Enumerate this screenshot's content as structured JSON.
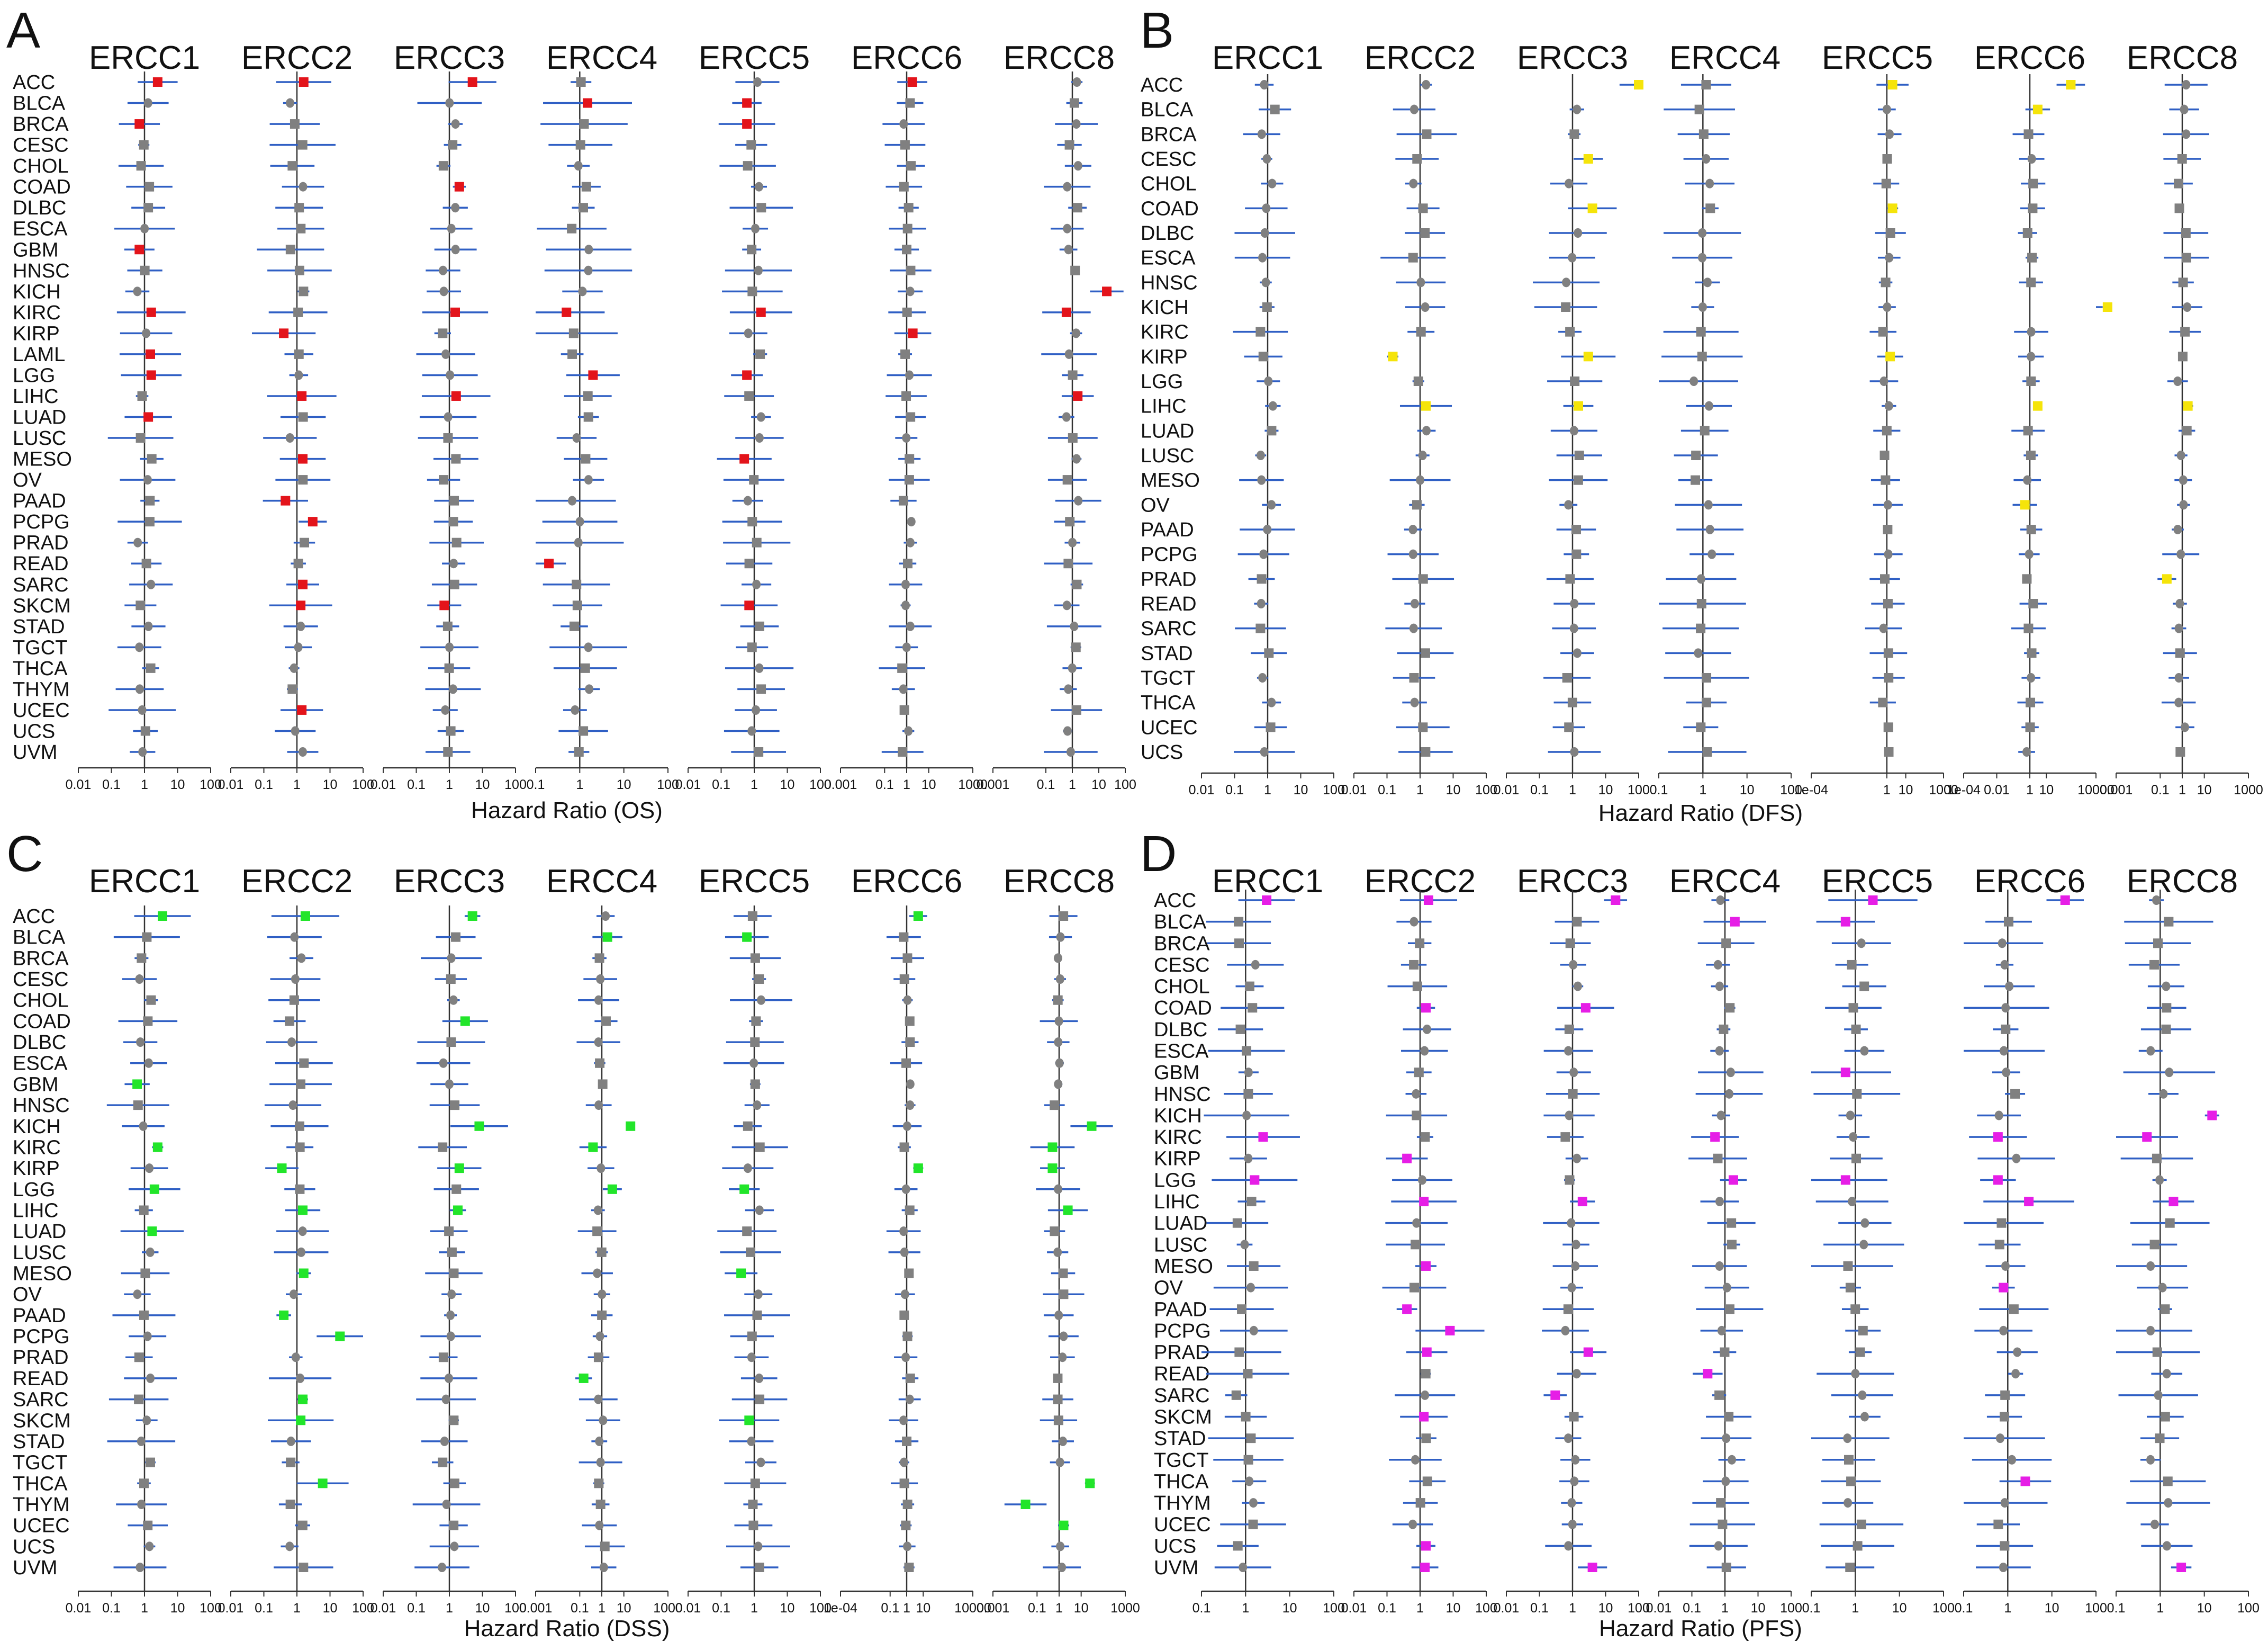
{
  "figure": {
    "genes": [
      "ERCC1",
      "ERCC2",
      "ERCC3",
      "ERCC4",
      "ERCC5",
      "ERCC6",
      "ERCC8"
    ],
    "colors": {
      "non_significant": "#808080",
      "ci_line": "#2f5fc4",
      "reference_line": "#333333",
      "sig_os": "#e3141b",
      "sig_dfs": "#f5e40a",
      "sig_dss": "#22e52a",
      "sig_pfs": "#e61ee6"
    },
    "marker_icons": [
      "square-marker-icon",
      "circle-marker-icon"
    ]
  },
  "chart_data": [
    {
      "type": "forest",
      "panel": "A",
      "xlabel": "Hazard Ratio (OS)",
      "highlight_color": "#e3141b",
      "cancers": [
        "ACC",
        "BLCA",
        "BRCA",
        "CESC",
        "CHOL",
        "COAD",
        "DLBC",
        "ESCA",
        "GBM",
        "HNSC",
        "KICH",
        "KIRC",
        "KIRP",
        "LAML",
        "LGG",
        "LIHC",
        "LUAD",
        "LUSC",
        "MESO",
        "OV",
        "PAAD",
        "PCPG",
        "PRAD",
        "READ",
        "SARC",
        "SKCM",
        "STAD",
        "TGCT",
        "THCA",
        "THYM",
        "UCEC",
        "UCS",
        "UVM"
      ],
      "columns": [
        {
          "gene": "ERCC1",
          "ticks": [
            "0.01",
            "0.1",
            "1",
            "10",
            "100"
          ],
          "tick_values": [
            0.01,
            0.1,
            1,
            10,
            100
          ],
          "significant": {
            "ACC": 2.5,
            "BRCA": 0.7,
            "GBM": 0.7,
            "KIRC": 1.6,
            "LAML": 1.5,
            "LGG": 1.6,
            "LUAD": 1.3
          }
        },
        {
          "gene": "ERCC2",
          "ticks": [
            "0.01",
            "0.1",
            "1",
            "10",
            "100"
          ],
          "tick_values": [
            0.01,
            0.1,
            1,
            10,
            100
          ],
          "significant": {
            "ACC": 1.6,
            "KIRP": 0.4,
            "LIHC": 1.4,
            "MESO": 1.5,
            "PAAD": 0.45,
            "PCPG": 3.0,
            "SARC": 1.5,
            "SKCM": 1.3,
            "UCEC": 1.4
          }
        },
        {
          "gene": "ERCC3",
          "ticks": [
            "0.01",
            "0.1",
            "1",
            "10",
            "100"
          ],
          "tick_values": [
            0.01,
            0.1,
            1,
            10,
            100
          ],
          "significant": {
            "ACC": 5.0,
            "COAD": 2.0,
            "KIRC": 1.5,
            "LIHC": 1.6,
            "SKCM": 0.7
          }
        },
        {
          "gene": "ERCC4",
          "ticks": [
            "0.1",
            "1",
            "10",
            "100"
          ],
          "tick_values": [
            0.1,
            1,
            10,
            100
          ],
          "significant": {
            "BLCA": 1.5,
            "KIRC": 0.5,
            "LGG": 2.0,
            "READ": 0.2
          }
        },
        {
          "gene": "ERCC5",
          "ticks": [
            "0.01",
            "0.1",
            "1",
            "10",
            "100"
          ],
          "tick_values": [
            0.01,
            0.1,
            1,
            10,
            100
          ],
          "significant": {
            "BLCA": 0.6,
            "BRCA": 0.6,
            "KIRC": 1.6,
            "LGG": 0.6,
            "MESO": 0.5,
            "SKCM": 0.7
          }
        },
        {
          "gene": "ERCC6",
          "ticks": [
            "0.001",
            "0.1",
            "1",
            "10",
            "1000"
          ],
          "tick_values": [
            0.001,
            0.1,
            1,
            10,
            1000
          ],
          "significant": {
            "ACC": 1.8,
            "KIRP": 1.9
          }
        },
        {
          "gene": "ERCC8",
          "ticks": [
            "0.001",
            "0.1",
            "1",
            "10",
            "100"
          ],
          "tick_values": [
            0.001,
            0.1,
            1,
            10,
            100
          ],
          "significant": {
            "KICH": 20,
            "KIRC": 0.6,
            "LIHC": 1.6
          }
        }
      ]
    },
    {
      "type": "forest",
      "panel": "B",
      "xlabel": "Hazard Ratio (DFS)",
      "highlight_color": "#f5e40a",
      "cancers": [
        "ACC",
        "BLCA",
        "BRCA",
        "CESC",
        "CHOL",
        "COAD",
        "DLBC",
        "ESCA",
        "HNSC",
        "KICH",
        "KIRC",
        "KIRP",
        "LGG",
        "LIHC",
        "LUAD",
        "LUSC",
        "MESO",
        "OV",
        "PAAD",
        "PCPG",
        "PRAD",
        "READ",
        "SARC",
        "STAD",
        "TGCT",
        "THCA",
        "UCEC",
        "UCS"
      ],
      "columns": [
        {
          "gene": "ERCC1",
          "ticks": [
            "0.01",
            "0.1",
            "1",
            "10",
            "100"
          ],
          "tick_values": [
            0.01,
            0.1,
            1,
            10,
            100
          ],
          "significant": {}
        },
        {
          "gene": "ERCC2",
          "ticks": [
            "0.01",
            "0.1",
            "1",
            "10",
            "100"
          ],
          "tick_values": [
            0.01,
            0.1,
            1,
            10,
            100
          ],
          "significant": {
            "KIRP": 0.15,
            "LIHC": 1.5
          }
        },
        {
          "gene": "ERCC3",
          "ticks": [
            "0.01",
            "0.1",
            "1",
            "10",
            "100"
          ],
          "tick_values": [
            0.01,
            0.1,
            1,
            10,
            100
          ],
          "significant": {
            "ACC": 100,
            "CESC": 3,
            "COAD": 4,
            "KIRP": 3,
            "LIHC": 1.5
          }
        },
        {
          "gene": "ERCC4",
          "ticks": [
            "0.1",
            "1",
            "10",
            "100"
          ],
          "tick_values": [
            0.1,
            1,
            10,
            100
          ],
          "significant": {}
        },
        {
          "gene": "ERCC5",
          "ticks": [
            "1e-04",
            "1",
            "10",
            "1000"
          ],
          "tick_values": [
            0.0001,
            1,
            10,
            1000
          ],
          "significant": {
            "ACC": 2,
            "COAD": 2,
            "KIRP": 1.5
          }
        },
        {
          "gene": "ERCC6",
          "ticks": [
            "1e-04",
            "0.01",
            "1",
            "10",
            "10000"
          ],
          "tick_values": [
            0.0001,
            0.01,
            1,
            10,
            10000
          ],
          "significant": {
            "ACC": 300,
            "BLCA": 3,
            "KICH": 50000,
            "LIHC": 3,
            "OV": 0.5
          }
        },
        {
          "gene": "ERCC8",
          "ticks": [
            "0.001",
            "0.1",
            "1",
            "10",
            "1000"
          ],
          "tick_values": [
            0.001,
            0.1,
            1,
            10,
            1000
          ],
          "significant": {
            "LIHC": 1.8,
            "PRAD": 0.2
          }
        }
      ]
    },
    {
      "type": "forest",
      "panel": "C",
      "xlabel": "Hazard Ratio (DSS)",
      "highlight_color": "#22e52a",
      "cancers": [
        "ACC",
        "BLCA",
        "BRCA",
        "CESC",
        "CHOL",
        "COAD",
        "DLBC",
        "ESCA",
        "GBM",
        "HNSC",
        "KICH",
        "KIRC",
        "KIRP",
        "LGG",
        "LIHC",
        "LUAD",
        "LUSC",
        "MESO",
        "OV",
        "PAAD",
        "PCPG",
        "PRAD",
        "READ",
        "SARC",
        "SKCM",
        "STAD",
        "TGCT",
        "THCA",
        "THYM",
        "UCEC",
        "UCS",
        "UVM"
      ],
      "columns": [
        {
          "gene": "ERCC1",
          "ticks": [
            "0.01",
            "0.1",
            "1",
            "10",
            "100"
          ],
          "tick_values": [
            0.01,
            0.1,
            1,
            10,
            100
          ],
          "significant": {
            "ACC": 3.5,
            "GBM": 0.6,
            "KIRC": 2.5,
            "LGG": 2.0,
            "LUAD": 1.7
          }
        },
        {
          "gene": "ERCC2",
          "ticks": [
            "0.01",
            "0.1",
            "1",
            "10",
            "100"
          ],
          "tick_values": [
            0.01,
            0.1,
            1,
            10,
            100
          ],
          "significant": {
            "ACC": 1.8,
            "KIRP": 0.35,
            "LIHC": 1.5,
            "MESO": 1.6,
            "PAAD": 0.4,
            "PCPG": 20,
            "SARC": 1.5,
            "SKCM": 1.3,
            "THCA": 6
          }
        },
        {
          "gene": "ERCC3",
          "ticks": [
            "0.01",
            "0.1",
            "1",
            "10",
            "100"
          ],
          "tick_values": [
            0.01,
            0.1,
            1,
            10,
            100
          ],
          "significant": {
            "ACC": 5.0,
            "COAD": 3.0,
            "KICH": 8,
            "KIRP": 2.0,
            "LIHC": 1.8
          }
        },
        {
          "gene": "ERCC4",
          "ticks": [
            "0.001",
            "0.1",
            "1",
            "10",
            "1000"
          ],
          "tick_values": [
            0.001,
            0.1,
            1,
            10,
            1000
          ],
          "significant": {
            "BLCA": 1.8,
            "KICH": 20,
            "KIRC": 0.4,
            "LGG": 3,
            "READ": 0.15
          }
        },
        {
          "gene": "ERCC5",
          "ticks": [
            "0.01",
            "0.1",
            "1",
            "10",
            "100"
          ],
          "tick_values": [
            0.01,
            0.1,
            1,
            10,
            100
          ],
          "significant": {
            "BLCA": 0.6,
            "LGG": 0.5,
            "MESO": 0.4,
            "SKCM": 0.7
          }
        },
        {
          "gene": "ERCC6",
          "ticks": [
            "1e-04",
            "0.1",
            "1",
            "10",
            "10000"
          ],
          "tick_values": [
            0.0001,
            0.1,
            1,
            10,
            10000
          ],
          "significant": {
            "ACC": 5,
            "KIRP": 5
          }
        },
        {
          "gene": "ERCC8",
          "ticks": [
            "0.001",
            "0.1",
            "1",
            "10",
            "1000"
          ],
          "tick_values": [
            0.001,
            0.1,
            1,
            10,
            1000
          ],
          "significant": {
            "KICH": 30,
            "KIRC": 0.5,
            "KIRP": 0.5,
            "LIHC": 2.5,
            "THCA": 25,
            "THYM": 0.03,
            "UCEC": 1.6
          }
        }
      ]
    },
    {
      "type": "forest",
      "panel": "D",
      "xlabel": "Hazard Ratio (PFS)",
      "highlight_color": "#e61ee6",
      "cancers": [
        "ACC",
        "BLCA",
        "BRCA",
        "CESC",
        "CHOL",
        "COAD",
        "DLBC",
        "ESCA",
        "GBM",
        "HNSC",
        "KICH",
        "KIRC",
        "KIRP",
        "LGG",
        "LIHC",
        "LUAD",
        "LUSC",
        "MESO",
        "OV",
        "PAAD",
        "PCPG",
        "PRAD",
        "READ",
        "SARC",
        "SKCM",
        "STAD",
        "TGCT",
        "THCA",
        "THYM",
        "UCEC",
        "UCS",
        "UVM"
      ],
      "columns": [
        {
          "gene": "ERCC1",
          "ticks": [
            "0.1",
            "1",
            "10",
            "100"
          ],
          "tick_values": [
            0.1,
            1,
            10,
            100
          ],
          "significant": {
            "ACC": 3.0,
            "KIRC": 2.5,
            "LGG": 1.6
          }
        },
        {
          "gene": "ERCC2",
          "ticks": [
            "0.01",
            "0.1",
            "1",
            "10",
            "100"
          ],
          "tick_values": [
            0.01,
            0.1,
            1,
            10,
            100
          ],
          "significant": {
            "ACC": 1.8,
            "COAD": 1.5,
            "KIRP": 0.4,
            "LIHC": 1.3,
            "MESO": 1.5,
            "PAAD": 0.4,
            "PCPG": 8,
            "PRAD": 1.6,
            "SKCM": 1.3,
            "UCS": 1.5,
            "UVM": 1.4
          }
        },
        {
          "gene": "ERCC3",
          "ticks": [
            "0.01",
            "0.1",
            "1",
            "10",
            "100"
          ],
          "tick_values": [
            0.01,
            0.1,
            1,
            10,
            100
          ],
          "significant": {
            "ACC": 20,
            "COAD": 2.5,
            "LIHC": 2.0,
            "PRAD": 3.0,
            "SARC": 0.3,
            "UVM": 4.0
          }
        },
        {
          "gene": "ERCC4",
          "ticks": [
            "0.01",
            "0.1",
            "1",
            "10",
            "100"
          ],
          "tick_values": [
            0.01,
            0.1,
            1,
            10,
            100
          ],
          "significant": {
            "BLCA": 2.0,
            "KIRC": 0.5,
            "LGG": 1.8,
            "READ": 0.3
          }
        },
        {
          "gene": "ERCC5",
          "ticks": [
            "0.1",
            "1",
            "10",
            "100"
          ],
          "tick_values": [
            0.1,
            1,
            10,
            100
          ],
          "significant": {
            "ACC": 2.5,
            "BLCA": 0.6,
            "GBM": 0.6,
            "LGG": 0.6
          }
        },
        {
          "gene": "ERCC6",
          "ticks": [
            "0.1",
            "1",
            "10",
            "100"
          ],
          "tick_values": [
            0.1,
            1,
            10,
            100
          ],
          "significant": {
            "ACC": 20,
            "KIRC": 0.6,
            "LGG": 0.6,
            "LIHC": 3,
            "OV": 0.8,
            "THCA": 2.5
          }
        },
        {
          "gene": "ERCC8",
          "ticks": [
            "0.1",
            "1",
            "10",
            "100"
          ],
          "tick_values": [
            0.1,
            1,
            10,
            100
          ],
          "significant": {
            "KICH": 15,
            "KIRC": 0.5,
            "LIHC": 2.0,
            "UVM": 3.0
          }
        }
      ]
    }
  ]
}
